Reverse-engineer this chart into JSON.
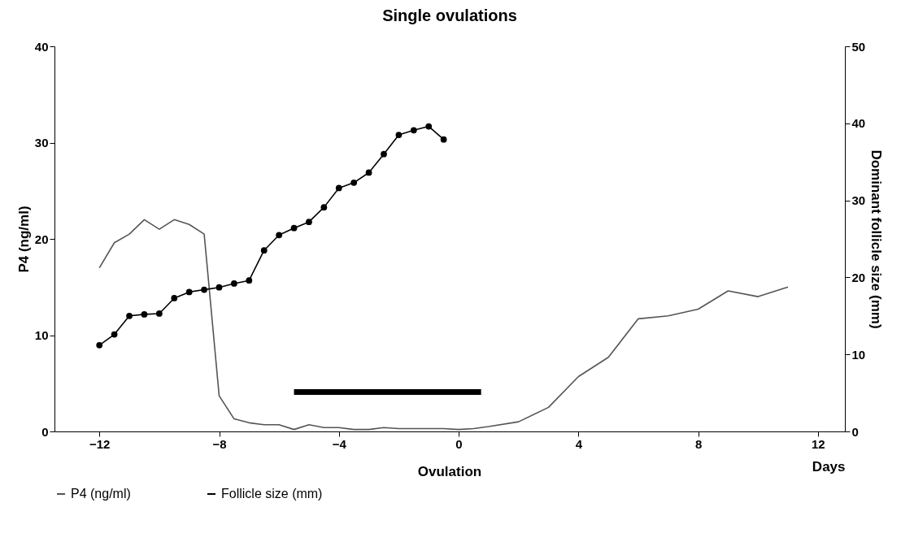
{
  "chart_data": {
    "type": "line",
    "title": "Single ovulations",
    "xlabel": "Days",
    "ylabel": "P4 (ng/ml)",
    "y2label": "Dominant follicle size (mm)",
    "xlim": [
      -13.5,
      12.9
    ],
    "xticks": [
      -12,
      -8,
      -4,
      0,
      4,
      8,
      12
    ],
    "ylim": [
      0,
      40
    ],
    "yticks": [
      0,
      10,
      20,
      30,
      40
    ],
    "y2lim": [
      0,
      50
    ],
    "y2ticks": [
      0,
      10,
      20,
      30,
      40,
      50
    ],
    "grid": false,
    "legend": "bottom",
    "annotations": [
      "Ovulation"
    ],
    "series": [
      {
        "name": "P4 (ng/ml)",
        "color": "#555555",
        "x": [
          -12,
          -11.5,
          -11,
          -10.5,
          -10,
          -9.5,
          -9,
          -8.5,
          -8,
          -7.5,
          -7,
          -6.5,
          -6,
          -5.5,
          -5,
          -4.5,
          -4,
          -3.5,
          -3,
          -2.5,
          -2,
          -1.5,
          -1,
          -0.5,
          0,
          0.5,
          1,
          2,
          3,
          4,
          5,
          6,
          7,
          8,
          9,
          10,
          11
        ],
        "values": [
          17,
          19.6,
          20.5,
          22,
          21,
          22,
          21.5,
          20.5,
          3.7,
          1.3,
          0.9,
          0.7,
          0.7,
          0.2,
          0.7,
          0.4,
          0.4,
          0.2,
          0.2,
          0.4,
          0.3,
          0.3,
          0.3,
          0.3,
          0.2,
          0.3,
          0.5,
          1.0,
          2.5,
          5.7,
          7.7,
          11.7,
          12.0,
          12.7,
          14.6,
          14.0,
          15.0
        ],
        "marker": "none"
      },
      {
        "name": "Follicle size (mm)",
        "color": "#000000",
        "axis": "y2",
        "marker": "circle",
        "x": [
          -12,
          -11.5,
          -11,
          -10.5,
          -10,
          -9.5,
          -9,
          -8.5,
          -8,
          -7.5,
          -7,
          -6.5,
          -6,
          -5.5,
          -5,
          -4.5,
          -4,
          -3.5,
          -3,
          -2.5,
          -2,
          -1.5,
          -1,
          -0.5
        ],
        "values": [
          11.2,
          12.6,
          15.0,
          15.2,
          15.3,
          17.3,
          18.1,
          18.4,
          18.7,
          19.2,
          19.6,
          23.5,
          25.5,
          26.4,
          27.2,
          29.1,
          31.6,
          32.3,
          33.6,
          36.0,
          38.5,
          39.1,
          39.6,
          37.9
        ]
      },
      {
        "color": "#000000",
        "x": [
          -5.5,
          0.75
        ],
        "values": [
          4.1,
          4.1
        ],
        "marker": "none"
      }
    ]
  }
}
